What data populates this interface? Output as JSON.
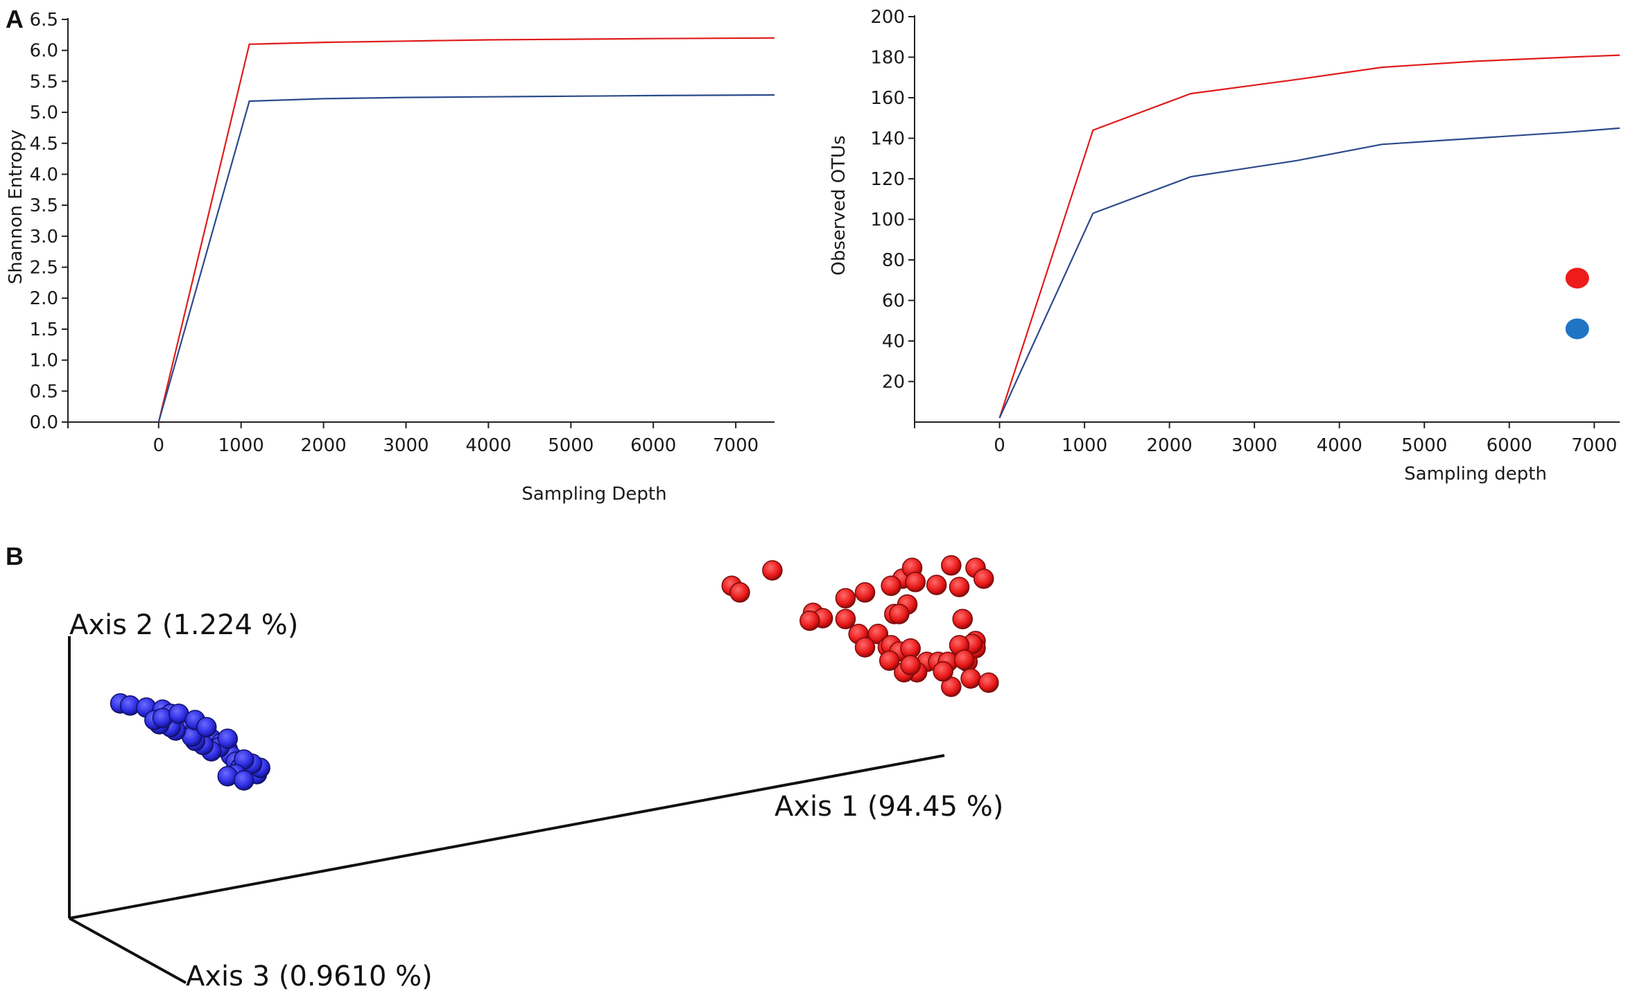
{
  "panels": {
    "a": "A",
    "b": "B"
  },
  "colors": {
    "red": "#e01b1b",
    "navy": "#2b4a8c",
    "blue_dot": "#1f74c4",
    "red_sphere": "#e81616",
    "blue_sphere": "#2a2ae0"
  },
  "chart_data": [
    {
      "type": "line",
      "ylabel": "Shannon Entropy",
      "xlabel": "Sampling Depth",
      "xlim": [
        -1100,
        7470
      ],
      "ylim": [
        0,
        6.5
      ],
      "xticks": [
        "0",
        "1000",
        "2000",
        "3000",
        "4000",
        "5000",
        "6000",
        "7000"
      ],
      "xtick_values": [
        0,
        1000,
        2000,
        3000,
        4000,
        5000,
        6000,
        7000
      ],
      "yticks": [
        "0.0",
        "0.5",
        "1.0",
        "1.5",
        "2.0",
        "2.5",
        "3.0",
        "3.5",
        "4.0",
        "4.5",
        "5.0",
        "5.5",
        "6.0",
        "6.5"
      ],
      "ytick_values": [
        0,
        0.5,
        1,
        1.5,
        2,
        2.5,
        3,
        3.5,
        4,
        4.5,
        5,
        5.5,
        6,
        6.5
      ],
      "series": [
        {
          "color": "#e01b1b",
          "x": [
            0,
            1100,
            2000,
            3000,
            4000,
            5000,
            6000,
            7470
          ],
          "y": [
            0,
            6.1,
            6.13,
            6.15,
            6.17,
            6.18,
            6.19,
            6.2
          ]
        },
        {
          "color": "#2b4a8c",
          "x": [
            0,
            1100,
            2000,
            3000,
            4000,
            5000,
            6000,
            7470
          ],
          "y": [
            0,
            5.18,
            5.22,
            5.24,
            5.25,
            5.26,
            5.27,
            5.28
          ]
        }
      ]
    },
    {
      "type": "line",
      "ylabel": "Observed OTUs",
      "xlabel": "Sampling depth",
      "xlim": [
        -1000,
        7300
      ],
      "ylim": [
        0,
        200
      ],
      "xticks": [
        "0",
        "1000",
        "2000",
        "3000",
        "4000",
        "5000",
        "6000",
        "7000"
      ],
      "xtick_values": [
        0,
        1000,
        2000,
        3000,
        4000,
        5000,
        6000,
        7000
      ],
      "yticks": [
        "20",
        "40",
        "60",
        "80",
        "100",
        "120",
        "140",
        "160",
        "180",
        "200"
      ],
      "ytick_values": [
        20,
        40,
        60,
        80,
        100,
        120,
        140,
        160,
        180,
        200
      ],
      "series": [
        {
          "color": "#e01b1b",
          "x": [
            0,
            1100,
            2250,
            3500,
            4500,
            5600,
            6700,
            7300
          ],
          "y": [
            2,
            144,
            162,
            169,
            175,
            178,
            180,
            181
          ]
        },
        {
          "color": "#2b4a8c",
          "x": [
            0,
            1100,
            2250,
            3500,
            4500,
            5600,
            6700,
            7300
          ],
          "y": [
            2,
            103,
            121,
            129,
            137,
            140,
            143,
            145
          ]
        }
      ],
      "legend_markers": [
        {
          "color": "#ee1b1b",
          "x": 6800,
          "y": 71
        },
        {
          "color": "#1f74c4",
          "x": 6800,
          "y": 46
        }
      ]
    },
    {
      "type": "scatter",
      "axis_labels": [
        "Axis 1 (94.45 %)",
        "Axis 2 (1.224 %)",
        "Axis 3 (0.9610 %)"
      ],
      "note": "projected 3D PCoA, values in projected plot units (0-1)",
      "series": [
        {
          "color": "#e81616",
          "points": [
            [
              0.555,
              0.105
            ],
            [
              0.561,
              0.079
            ],
            [
              0.585,
              0.073
            ],
            [
              0.6,
              0.079
            ],
            [
              0.605,
              0.105
            ],
            [
              0.59,
              0.125
            ],
            [
              0.576,
              0.12
            ],
            [
              0.563,
              0.113
            ],
            [
              0.548,
              0.122
            ],
            [
              0.532,
              0.138
            ],
            [
              0.52,
              0.152
            ],
            [
              0.475,
              0.085
            ],
            [
              0.45,
              0.122
            ],
            [
              0.455,
              0.138
            ],
            [
              0.5,
              0.187
            ],
            [
              0.506,
              0.2
            ],
            [
              0.498,
              0.206
            ],
            [
              0.52,
              0.202
            ],
            [
              0.55,
              0.19
            ],
            [
              0.558,
              0.167
            ],
            [
              0.553,
              0.19
            ],
            [
              0.592,
              0.202
            ],
            [
              0.6,
              0.255
            ],
            [
              0.528,
              0.238
            ],
            [
              0.54,
              0.238
            ],
            [
              0.546,
              0.27
            ],
            [
              0.532,
              0.27
            ],
            [
              0.548,
              0.265
            ],
            [
              0.553,
              0.28
            ],
            [
              0.56,
              0.273
            ],
            [
              0.57,
              0.305
            ],
            [
              0.577,
              0.305
            ],
            [
              0.583,
              0.305
            ],
            [
              0.595,
              0.305
            ],
            [
              0.6,
              0.272
            ],
            [
              0.598,
              0.262
            ],
            [
              0.59,
              0.265
            ],
            [
              0.593,
              0.3
            ],
            [
              0.597,
              0.345
            ],
            [
              0.608,
              0.355
            ],
            [
              0.585,
              0.365
            ],
            [
              0.58,
              0.328
            ],
            [
              0.564,
              0.33
            ],
            [
              0.556,
              0.33
            ],
            [
              0.56,
              0.313
            ],
            [
              0.547,
              0.302
            ]
          ]
        },
        {
          "color": "#2a2ae0",
          "points": [
            [
              0.074,
              0.405
            ],
            [
              0.08,
              0.41
            ],
            [
              0.09,
              0.415
            ],
            [
              0.1,
              0.42
            ],
            [
              0.105,
              0.43
            ],
            [
              0.11,
              0.44
            ],
            [
              0.112,
              0.45
            ],
            [
              0.115,
              0.462
            ],
            [
              0.12,
              0.47
            ],
            [
              0.125,
              0.48
            ],
            [
              0.13,
              0.49
            ],
            [
              0.136,
              0.5
            ],
            [
              0.14,
              0.515
            ],
            [
              0.142,
              0.53
            ],
            [
              0.145,
              0.545
            ],
            [
              0.148,
              0.558
            ],
            [
              0.152,
              0.57
            ],
            [
              0.158,
              0.575
            ],
            [
              0.16,
              0.56
            ],
            [
              0.155,
              0.55
            ],
            [
              0.15,
              0.54
            ],
            [
              0.135,
              0.51
            ],
            [
              0.13,
              0.52
            ],
            [
              0.125,
              0.505
            ],
            [
              0.12,
              0.495
            ],
            [
              0.118,
              0.485
            ],
            [
              0.108,
              0.47
            ],
            [
              0.105,
              0.462
            ],
            [
              0.098,
              0.455
            ],
            [
              0.095,
              0.445
            ],
            [
              0.1,
              0.44
            ],
            [
              0.11,
              0.43
            ],
            [
              0.12,
              0.445
            ],
            [
              0.127,
              0.462
            ],
            [
              0.14,
              0.49
            ],
            [
              0.145,
              0.575
            ],
            [
              0.14,
              0.58
            ],
            [
              0.15,
              0.59
            ]
          ]
        }
      ]
    }
  ]
}
